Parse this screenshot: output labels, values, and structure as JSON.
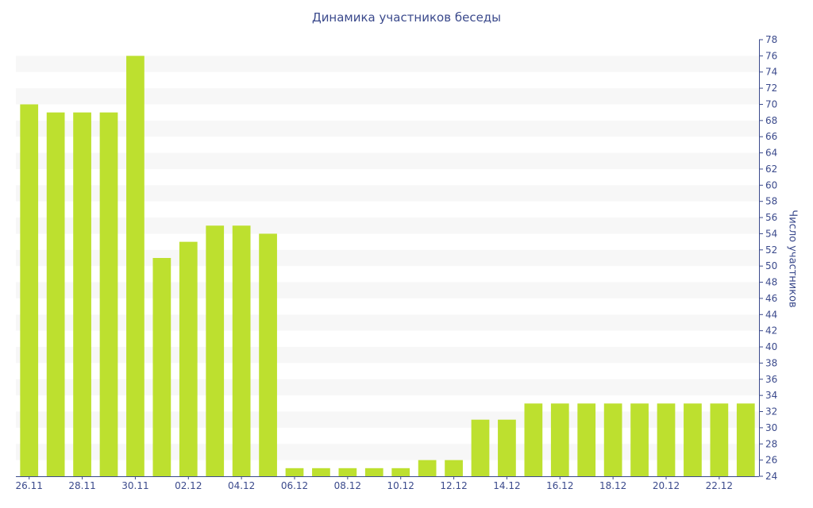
{
  "chart_data": {
    "type": "bar",
    "title": "Динамика участников беседы",
    "xlabel": "",
    "ylabel": "Число участников",
    "ylim": [
      24,
      78
    ],
    "y_ticks": [
      24,
      26,
      28,
      30,
      32,
      34,
      36,
      38,
      40,
      42,
      44,
      46,
      48,
      50,
      52,
      54,
      56,
      58,
      60,
      62,
      64,
      66,
      68,
      70,
      72,
      74,
      76,
      78
    ],
    "y_axis_side": "right",
    "grid": "horizontal alternating bands",
    "categories": [
      "26.11",
      "27.11",
      "28.11",
      "29.11",
      "30.11",
      "01.12",
      "02.12",
      "03.12",
      "04.12",
      "05.12",
      "06.12",
      "07.12",
      "08.12",
      "09.12",
      "10.12",
      "11.12",
      "12.12",
      "13.12",
      "14.12",
      "15.12",
      "16.12",
      "17.12",
      "18.12",
      "19.12",
      "20.12",
      "21.12",
      "22.12",
      "23.12"
    ],
    "x_tick_labels": [
      "26.11",
      "28.11",
      "30.11",
      "02.12",
      "04.12",
      "06.12",
      "08.12",
      "10.12",
      "12.12",
      "14.12",
      "16.12",
      "18.12",
      "20.12",
      "22.12"
    ],
    "values": [
      70,
      69,
      69,
      69,
      76,
      51,
      53,
      55,
      55,
      54,
      25,
      25,
      25,
      25,
      25,
      26,
      26,
      31,
      31,
      33,
      33,
      33,
      33,
      33,
      33,
      33,
      33,
      33
    ],
    "colors": {
      "bar": "#bde02f",
      "text": "#3b4a8c",
      "band": "#f7f7f7",
      "axis": "#3b4a8c"
    }
  }
}
